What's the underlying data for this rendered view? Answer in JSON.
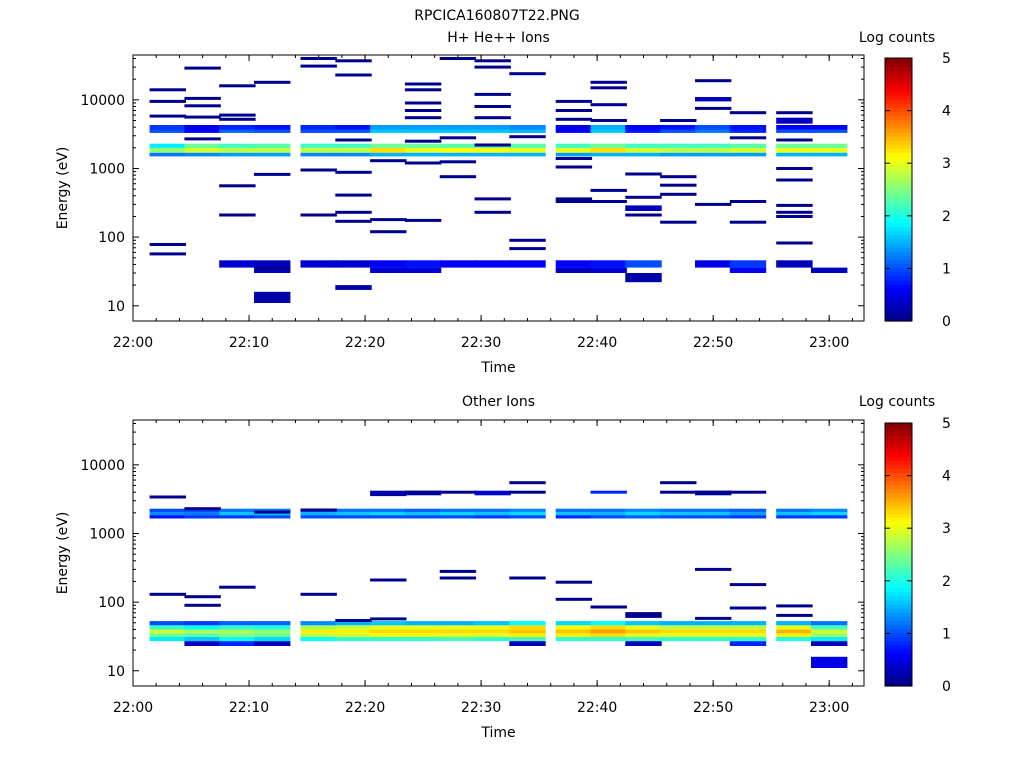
{
  "figure_title": "RPCICA160807T22.PNG",
  "colorscale": {
    "label": "Log counts",
    "ticks": [
      "0",
      "1",
      "2",
      "3",
      "4",
      "5"
    ],
    "range": [
      0,
      5
    ]
  },
  "chart_data": [
    {
      "type": "heatmap",
      "title": "H+ He++ Ions",
      "xlabel": "Time",
      "ylabel": "Energy (eV)",
      "y_scale": "log",
      "ylim": [
        6,
        45000
      ],
      "xlim": [
        "22:00",
        "23:03"
      ],
      "x_ticks": [
        "22:00",
        "22:10",
        "22:20",
        "22:30",
        "22:40",
        "22:50",
        "23:00"
      ],
      "y_ticks": [
        "10",
        "100",
        "1000",
        "10000"
      ],
      "time_bins": [
        "22:03",
        "22:06",
        "22:09",
        "22:12",
        "22:16",
        "22:19",
        "22:22",
        "22:25",
        "22:28",
        "22:31",
        "22:34",
        "22:38",
        "22:41",
        "22:44",
        "22:47",
        "22:50",
        "22:53",
        "22:57",
        "23:00"
      ],
      "bands": [
        {
          "e_lo": 1500,
          "e_hi": 1700,
          "values": [
            1.2,
            1.3,
            1.4,
            1.4,
            1.3,
            1.3,
            1.5,
            1.5,
            1.5,
            1.5,
            1.5,
            1.4,
            1.5,
            1.5,
            1.4,
            1.4,
            1.4,
            1.5,
            1.5
          ]
        },
        {
          "e_lo": 1700,
          "e_hi": 2000,
          "values": [
            2.6,
            2.9,
            2.8,
            2.8,
            2.8,
            2.8,
            3.3,
            3.0,
            3.1,
            3.1,
            3.0,
            3.0,
            3.3,
            2.9,
            2.8,
            2.8,
            2.9,
            3.0,
            3.0
          ]
        },
        {
          "e_lo": 2000,
          "e_hi": 2300,
          "values": [
            1.8,
            2.4,
            2.2,
            2.3,
            2.2,
            2.2,
            2.4,
            2.4,
            2.3,
            2.3,
            2.3,
            2.2,
            2.4,
            2.2,
            2.2,
            2.2,
            2.3,
            2.4,
            2.4
          ]
        },
        {
          "e_lo": 3300,
          "e_hi": 3700,
          "values": [
            1.0,
            0.6,
            1.1,
            1.0,
            1.0,
            1.0,
            1.6,
            1.6,
            1.6,
            1.6,
            1.5,
            0.6,
            1.6,
            0.7,
            1.0,
            1.2,
            0.8,
            1.0,
            1.0
          ]
        },
        {
          "e_lo": 3700,
          "e_hi": 4300,
          "values": [
            0.9,
            0.5,
            0.8,
            0.7,
            0.8,
            0.7,
            1.4,
            1.4,
            1.4,
            1.4,
            1.3,
            0.5,
            1.5,
            0.6,
            0.7,
            1.0,
            0.7,
            0.6,
            0.6
          ]
        },
        {
          "e_lo": 36,
          "e_hi": 46,
          "values": [
            null,
            null,
            0.4,
            0.3,
            0.4,
            0.4,
            0.6,
            0.7,
            0.6,
            0.6,
            0.6,
            0.6,
            0.7,
            1.0,
            null,
            0.5,
            0.9,
            0.3,
            null
          ]
        },
        {
          "e_lo": 30,
          "e_hi": 36,
          "values": [
            null,
            null,
            null,
            0.3,
            null,
            null,
            0.4,
            0.4,
            null,
            null,
            null,
            0.3,
            0.4,
            null,
            null,
            null,
            0.6,
            null,
            0.3
          ]
        }
      ],
      "cells": [
        {
          "t": 13,
          "e_lo": 22,
          "e_hi": 30,
          "v": 0.2
        },
        {
          "t": 3,
          "e_lo": 11,
          "e_hi": 16,
          "v": 0.2
        },
        {
          "t": 5,
          "e_lo": 17,
          "e_hi": 20,
          "v": 0.2
        },
        {
          "t": 13,
          "e_lo": 240,
          "e_hi": 290,
          "v": 0.3
        },
        {
          "t": 17,
          "e_lo": 4500,
          "e_hi": 5500,
          "v": 0.3
        },
        {
          "t": 15,
          "e_lo": 9500,
          "e_hi": 11000,
          "v": 0.3
        }
      ],
      "lines": [
        {
          "t": 0,
          "e": 14000
        },
        {
          "t": 0,
          "e": 9500
        },
        {
          "t": 0,
          "e": 5800
        },
        {
          "t": 0,
          "e": 78
        },
        {
          "t": 0,
          "e": 57
        },
        {
          "t": 1,
          "e": 29000
        },
        {
          "t": 1,
          "e": 10500
        },
        {
          "t": 1,
          "e": 8200
        },
        {
          "t": 1,
          "e": 5600
        },
        {
          "t": 1,
          "e": 2700
        },
        {
          "t": 2,
          "e": 16000
        },
        {
          "t": 2,
          "e": 6000
        },
        {
          "t": 2,
          "e": 5200
        },
        {
          "t": 2,
          "e": 560
        },
        {
          "t": 2,
          "e": 210
        },
        {
          "t": 3,
          "e": 18000
        },
        {
          "t": 3,
          "e": 820
        },
        {
          "t": 3,
          "e": 35
        },
        {
          "t": 4,
          "e": 40000
        },
        {
          "t": 4,
          "e": 31000
        },
        {
          "t": 4,
          "e": 950
        },
        {
          "t": 4,
          "e": 210
        },
        {
          "t": 5,
          "e": 37000
        },
        {
          "t": 5,
          "e": 23000
        },
        {
          "t": 5,
          "e": 2600
        },
        {
          "t": 5,
          "e": 880
        },
        {
          "t": 5,
          "e": 410
        },
        {
          "t": 5,
          "e": 230
        },
        {
          "t": 5,
          "e": 170
        },
        {
          "t": 6,
          "e": 1300
        },
        {
          "t": 6,
          "e": 180
        },
        {
          "t": 6,
          "e": 120
        },
        {
          "t": 7,
          "e": 17000
        },
        {
          "t": 7,
          "e": 14000
        },
        {
          "t": 7,
          "e": 9000
        },
        {
          "t": 7,
          "e": 7000
        },
        {
          "t": 7,
          "e": 5500
        },
        {
          "t": 7,
          "e": 2500
        },
        {
          "t": 7,
          "e": 1200
        },
        {
          "t": 7,
          "e": 175
        },
        {
          "t": 8,
          "e": 40000
        },
        {
          "t": 8,
          "e": 2800
        },
        {
          "t": 8,
          "e": 1250
        },
        {
          "t": 8,
          "e": 760
        },
        {
          "t": 9,
          "e": 37000
        },
        {
          "t": 9,
          "e": 30000
        },
        {
          "t": 9,
          "e": 12000
        },
        {
          "t": 9,
          "e": 8000
        },
        {
          "t": 9,
          "e": 5500
        },
        {
          "t": 9,
          "e": 2200
        },
        {
          "t": 9,
          "e": 360
        },
        {
          "t": 9,
          "e": 230
        },
        {
          "t": 10,
          "e": 24000
        },
        {
          "t": 10,
          "e": 2900
        },
        {
          "t": 10,
          "e": 90
        },
        {
          "t": 10,
          "e": 68
        },
        {
          "t": 11,
          "e": 9500
        },
        {
          "t": 11,
          "e": 7000
        },
        {
          "t": 11,
          "e": 5200
        },
        {
          "t": 11,
          "e": 1400
        },
        {
          "t": 11,
          "e": 1050
        },
        {
          "t": 11,
          "e": 360
        },
        {
          "t": 11,
          "e": 330
        },
        {
          "t": 12,
          "e": 18000
        },
        {
          "t": 12,
          "e": 15000
        },
        {
          "t": 12,
          "e": 8500
        },
        {
          "t": 12,
          "e": 5000
        },
        {
          "t": 12,
          "e": 480
        },
        {
          "t": 12,
          "e": 330
        },
        {
          "t": 13,
          "e": 830
        },
        {
          "t": 13,
          "e": 380
        },
        {
          "t": 13,
          "e": 210
        },
        {
          "t": 14,
          "e": 5000
        },
        {
          "t": 14,
          "e": 760
        },
        {
          "t": 14,
          "e": 570
        },
        {
          "t": 14,
          "e": 420
        },
        {
          "t": 14,
          "e": 165
        },
        {
          "t": 15,
          "e": 19000
        },
        {
          "t": 15,
          "e": 7500
        },
        {
          "t": 15,
          "e": 300
        },
        {
          "t": 16,
          "e": 6500
        },
        {
          "t": 16,
          "e": 2800
        },
        {
          "t": 16,
          "e": 330
        },
        {
          "t": 16,
          "e": 165
        },
        {
          "t": 17,
          "e": 6500
        },
        {
          "t": 17,
          "e": 2600
        },
        {
          "t": 17,
          "e": 1000
        },
        {
          "t": 17,
          "e": 680
        },
        {
          "t": 17,
          "e": 290
        },
        {
          "t": 17,
          "e": 230
        },
        {
          "t": 17,
          "e": 200
        },
        {
          "t": 17,
          "e": 82
        }
      ]
    },
    {
      "type": "heatmap",
      "title": "Other Ions",
      "xlabel": "Time",
      "ylabel": "Energy (eV)",
      "y_scale": "log",
      "ylim": [
        6,
        45000
      ],
      "xlim": [
        "22:00",
        "23:03"
      ],
      "x_ticks": [
        "22:00",
        "22:10",
        "22:20",
        "22:30",
        "22:40",
        "22:50",
        "23:00"
      ],
      "y_ticks": [
        "10",
        "100",
        "1000",
        "10000"
      ],
      "time_bins": [
        "22:03",
        "22:06",
        "22:09",
        "22:12",
        "22:16",
        "22:19",
        "22:22",
        "22:25",
        "22:28",
        "22:31",
        "22:34",
        "22:38",
        "22:41",
        "22:44",
        "22:47",
        "22:50",
        "22:53",
        "22:57",
        "23:00"
      ],
      "bands": [
        {
          "e_lo": 1650,
          "e_hi": 1850,
          "values": [
            0.7,
            0.9,
            0.9,
            1.0,
            1.0,
            1.0,
            1.0,
            1.0,
            1.0,
            0.9,
            1.0,
            0.8,
            1.0,
            1.1,
            1.0,
            1.0,
            0.9,
            0.9,
            0.9
          ]
        },
        {
          "e_lo": 1850,
          "e_hi": 2050,
          "values": [
            1.3,
            1.2,
            1.6,
            1.6,
            1.5,
            1.6,
            1.7,
            1.6,
            1.7,
            1.6,
            1.7,
            1.6,
            1.5,
            1.7,
            1.6,
            1.6,
            1.4,
            1.6,
            1.7
          ]
        },
        {
          "e_lo": 2050,
          "e_hi": 2300,
          "values": [
            1.0,
            1.0,
            1.2,
            1.2,
            1.1,
            1.2,
            1.2,
            1.1,
            1.2,
            1.2,
            1.3,
            1.2,
            1.2,
            1.3,
            1.2,
            1.2,
            1.1,
            1.2,
            1.3
          ]
        },
        {
          "e_lo": 27,
          "e_hi": 31,
          "values": [
            1.8,
            1.6,
            1.9,
            1.7,
            1.9,
            2.1,
            2.1,
            2.1,
            2.2,
            2.1,
            2.2,
            2.1,
            2.1,
            2.2,
            2.1,
            2.1,
            2.1,
            2.0,
            1.8
          ]
        },
        {
          "e_lo": 31,
          "e_hi": 35,
          "values": [
            2.4,
            2.3,
            2.5,
            2.4,
            2.8,
            2.9,
            3.1,
            3.1,
            3.0,
            3.0,
            3.2,
            3.2,
            3.3,
            3.0,
            3.0,
            3.0,
            3.0,
            3.2,
            2.6
          ]
        },
        {
          "e_lo": 35,
          "e_hi": 40,
          "values": [
            2.9,
            2.7,
            2.7,
            2.6,
            3.2,
            3.2,
            3.3,
            3.3,
            3.3,
            3.3,
            3.4,
            3.4,
            3.6,
            3.4,
            3.3,
            3.3,
            3.3,
            3.5,
            2.9
          ]
        },
        {
          "e_lo": 40,
          "e_hi": 46,
          "values": [
            2.1,
            1.9,
            2.1,
            2.0,
            2.7,
            2.8,
            3.0,
            3.0,
            3.0,
            3.0,
            3.3,
            3.1,
            3.3,
            3.0,
            2.8,
            2.8,
            2.8,
            3.0,
            2.2
          ]
        },
        {
          "e_lo": 46,
          "e_hi": 53,
          "values": [
            1.0,
            0.9,
            1.1,
            1.1,
            1.3,
            1.5,
            1.6,
            1.5,
            1.5,
            1.6,
            1.9,
            1.7,
            1.9,
            1.6,
            1.5,
            1.5,
            1.5,
            1.5,
            1.2
          ]
        },
        {
          "e_lo": 23,
          "e_hi": 27,
          "values": [
            null,
            0.3,
            0.8,
            0.3,
            null,
            null,
            null,
            null,
            null,
            null,
            0.3,
            null,
            null,
            0.3,
            null,
            null,
            0.8,
            null,
            0.3
          ]
        }
      ],
      "cells": [
        {
          "t": 18,
          "e_lo": 11,
          "e_hi": 16,
          "v": 0.5
        },
        {
          "t": 6,
          "e_lo": 3500,
          "e_hi": 4200,
          "v": 0.2
        },
        {
          "t": 7,
          "e_lo": 3600,
          "e_hi": 4200,
          "v": 0.2
        },
        {
          "t": 9,
          "e_lo": 3600,
          "e_hi": 4200,
          "v": 0.4
        },
        {
          "t": 12,
          "e_lo": 3800,
          "e_hi": 4200,
          "v": 0.8
        },
        {
          "t": 15,
          "e_lo": 3600,
          "e_hi": 4200,
          "v": 0.2
        }
      ],
      "lines": [
        {
          "t": 0,
          "e": 3400
        },
        {
          "t": 0,
          "e": 130
        },
        {
          "t": 1,
          "e": 2300
        },
        {
          "t": 1,
          "e": 120
        },
        {
          "t": 1,
          "e": 90
        },
        {
          "t": 2,
          "e": 165
        },
        {
          "t": 3,
          "e": 2050
        },
        {
          "t": 4,
          "e": 2200
        },
        {
          "t": 4,
          "e": 130
        },
        {
          "t": 5,
          "e": 54
        },
        {
          "t": 6,
          "e": 210
        },
        {
          "t": 6,
          "e": 57
        },
        {
          "t": 7,
          "e": 4000
        },
        {
          "t": 8,
          "e": 4000
        },
        {
          "t": 8,
          "e": 280
        },
        {
          "t": 8,
          "e": 225
        },
        {
          "t": 10,
          "e": 5500
        },
        {
          "t": 10,
          "e": 4000
        },
        {
          "t": 10,
          "e": 225
        },
        {
          "t": 11,
          "e": 195
        },
        {
          "t": 11,
          "e": 110
        },
        {
          "t": 12,
          "e": 85
        },
        {
          "t": 13,
          "e": 68
        },
        {
          "t": 13,
          "e": 62
        },
        {
          "t": 14,
          "e": 5500
        },
        {
          "t": 14,
          "e": 4000
        },
        {
          "t": 15,
          "e": 4000
        },
        {
          "t": 15,
          "e": 300
        },
        {
          "t": 15,
          "e": 58
        },
        {
          "t": 16,
          "e": 4000
        },
        {
          "t": 16,
          "e": 180
        },
        {
          "t": 16,
          "e": 82
        },
        {
          "t": 17,
          "e": 88
        },
        {
          "t": 17,
          "e": 64
        }
      ]
    }
  ]
}
